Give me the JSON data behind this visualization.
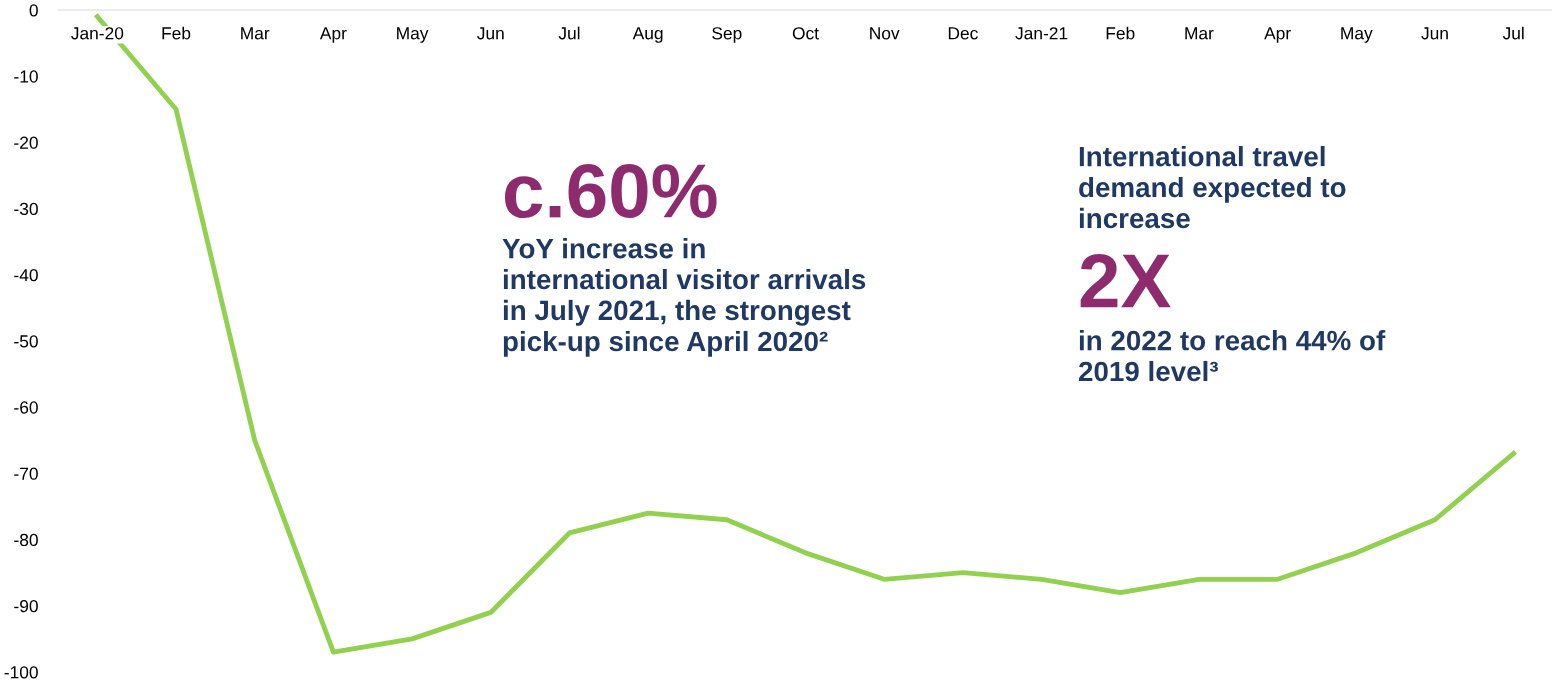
{
  "chart_data": {
    "type": "line",
    "categories": [
      "Jan-20",
      "Feb",
      "Mar",
      "Apr",
      "May",
      "Jun",
      "Jul",
      "Aug",
      "Sep",
      "Oct",
      "Nov",
      "Dec",
      "Jan-21",
      "Feb",
      "Mar",
      "Apr",
      "May",
      "Jun",
      "Jul"
    ],
    "series": [
      {
        "color": "#92d050",
        "values": [
          -1,
          -15,
          -65,
          -97,
          -95,
          -91,
          -79,
          -76,
          -77,
          -82,
          -86,
          -85,
          -86,
          -88,
          -86,
          -86,
          -82,
          -77,
          -67
        ]
      }
    ],
    "ylim": [
      -100,
      0
    ],
    "yticks": [
      -100,
      -90,
      -80,
      -70,
      -60,
      -50,
      -40,
      -30,
      -20,
      -10,
      0
    ],
    "grid": false,
    "legend": false,
    "marker": "none",
    "line_style": "solid",
    "annotations": [
      "c.60%",
      "YoY increase in\ninternational visitor arrivals\nin July 2021, the strongest\npick-up since April 2020²",
      "International travel\ndemand expected to\nincrease",
      "2X",
      "in 2022 to reach 44% of\n2019 level³"
    ]
  }
}
